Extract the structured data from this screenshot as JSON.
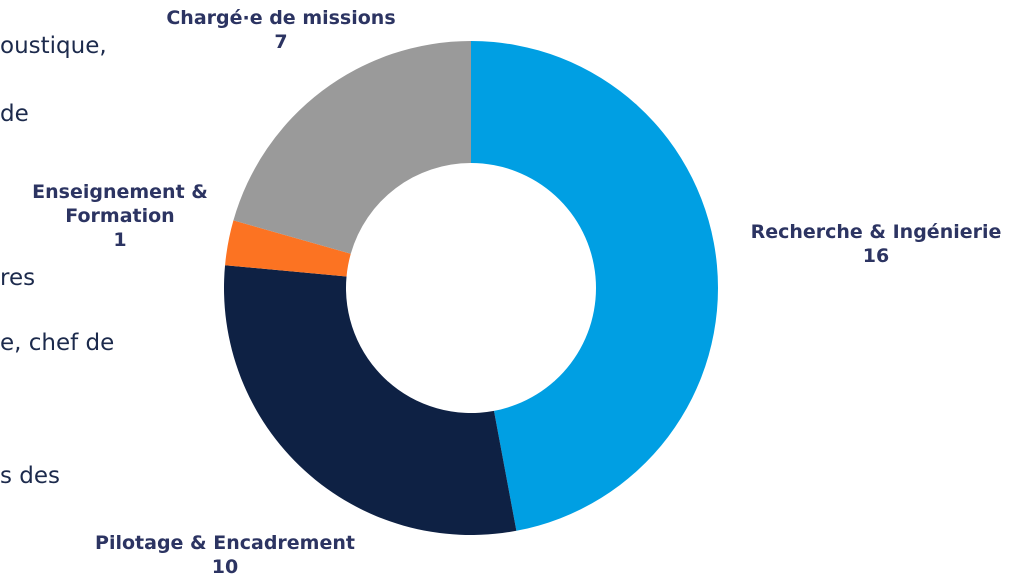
{
  "side_text": [
    "oustique,",
    "de",
    "res",
    "e, chef de",
    "s des"
  ],
  "chart_data": {
    "type": "pie",
    "donut": true,
    "categories": [
      "Recherche & Ingénierie",
      "Pilotage & Encadrement",
      "Enseignement & Formation",
      "Chargé·e de missions"
    ],
    "values": [
      16,
      10,
      1,
      7
    ],
    "colors": [
      "#009fe3",
      "#0e2144",
      "#fc7322",
      "#9a9a9a"
    ]
  }
}
